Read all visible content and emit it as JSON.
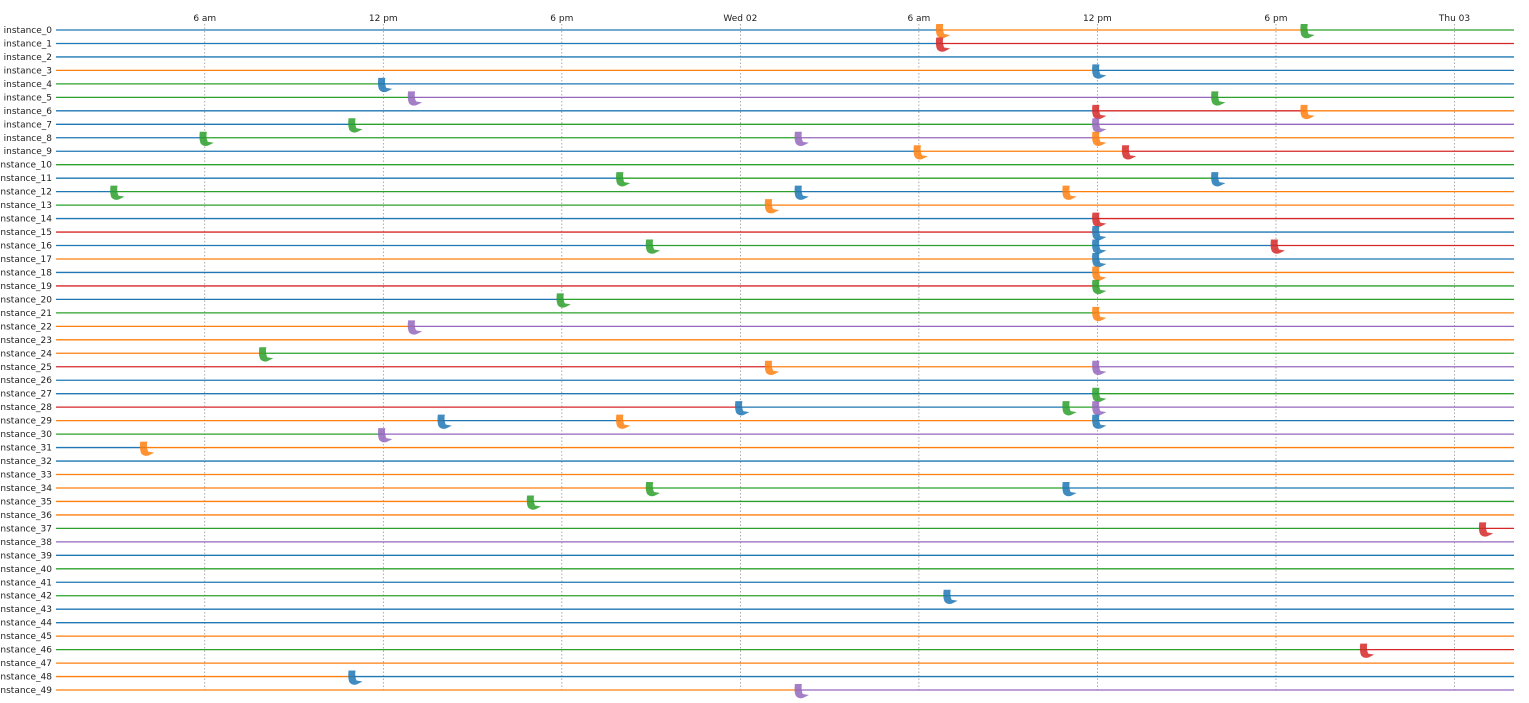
{
  "chart_data": {
    "type": "timeline",
    "title": "",
    "xlabel": "",
    "ylabel": "",
    "x_range": [
      "2021-06-01 01:00",
      "2021-06-03 02:00"
    ],
    "ticks": [
      {
        "t": "2021-06-01 06:00",
        "label": "6 am"
      },
      {
        "t": "2021-06-01 12:00",
        "label": "12 pm"
      },
      {
        "t": "2021-06-01 18:00",
        "label": "6 pm"
      },
      {
        "t": "2021-06-02 00:00",
        "label": "Wed 02"
      },
      {
        "t": "2021-06-02 06:00",
        "label": "6 am"
      },
      {
        "t": "2021-06-02 12:00",
        "label": "12 pm"
      },
      {
        "t": "2021-06-02 18:00",
        "label": "6 pm"
      },
      {
        "t": "2021-06-03 00:00",
        "label": "Thu 03"
      }
    ],
    "state_colors": {
      "blue": "#1f77b4",
      "orange": "#ff7f0e",
      "green": "#2ca02c",
      "red": "#d62728",
      "purple": "#9467bd"
    },
    "rows": [
      {
        "name": "instance_0",
        "segments": [
          [
            "2021-06-01 01:00",
            "2021-06-02 06:45",
            "blue"
          ],
          [
            "2021-06-02 06:45",
            "2021-06-02 19:00",
            "orange"
          ],
          [
            "2021-06-02 19:00",
            "2021-06-03 02:00",
            "green"
          ]
        ]
      },
      {
        "name": "instance_1",
        "segments": [
          [
            "2021-06-01 01:00",
            "2021-06-02 06:45",
            "blue"
          ],
          [
            "2021-06-02 06:45",
            "2021-06-03 02:00",
            "red"
          ]
        ]
      },
      {
        "name": "instance_2",
        "segments": [
          [
            "2021-06-01 01:00",
            "2021-06-03 02:00",
            "blue"
          ]
        ]
      },
      {
        "name": "instance_3",
        "segments": [
          [
            "2021-06-01 01:00",
            "2021-06-02 12:00",
            "orange"
          ],
          [
            "2021-06-02 12:00",
            "2021-06-03 02:00",
            "blue"
          ]
        ]
      },
      {
        "name": "instance_4",
        "segments": [
          [
            "2021-06-01 01:00",
            "2021-06-01 12:00",
            "green"
          ],
          [
            "2021-06-01 12:00",
            "2021-06-03 02:00",
            "blue"
          ]
        ]
      },
      {
        "name": "instance_5",
        "segments": [
          [
            "2021-06-01 01:00",
            "2021-06-01 13:00",
            "green"
          ],
          [
            "2021-06-01 13:00",
            "2021-06-02 16:00",
            "purple"
          ],
          [
            "2021-06-02 16:00",
            "2021-06-03 02:00",
            "green"
          ]
        ]
      },
      {
        "name": "instance_6",
        "segments": [
          [
            "2021-06-01 01:00",
            "2021-06-02 12:00",
            "blue"
          ],
          [
            "2021-06-02 12:00",
            "2021-06-02 19:00",
            "red"
          ],
          [
            "2021-06-02 19:00",
            "2021-06-03 02:00",
            "orange"
          ]
        ]
      },
      {
        "name": "instance_7",
        "segments": [
          [
            "2021-06-01 01:00",
            "2021-06-01 11:00",
            "blue"
          ],
          [
            "2021-06-01 11:00",
            "2021-06-02 12:00",
            "green"
          ],
          [
            "2021-06-02 12:00",
            "2021-06-03 02:00",
            "purple"
          ]
        ]
      },
      {
        "name": "instance_8",
        "segments": [
          [
            "2021-06-01 01:00",
            "2021-06-01 06:00",
            "blue"
          ],
          [
            "2021-06-01 06:00",
            "2021-06-02 02:00",
            "green"
          ],
          [
            "2021-06-02 02:00",
            "2021-06-02 12:00",
            "purple"
          ],
          [
            "2021-06-02 12:00",
            "2021-06-03 02:00",
            "orange"
          ]
        ]
      },
      {
        "name": "instance_9",
        "segments": [
          [
            "2021-06-01 01:00",
            "2021-06-02 06:00",
            "blue"
          ],
          [
            "2021-06-02 06:00",
            "2021-06-02 13:00",
            "orange"
          ],
          [
            "2021-06-02 13:00",
            "2021-06-03 02:00",
            "red"
          ]
        ]
      },
      {
        "name": "instance_10",
        "segments": [
          [
            "2021-06-01 01:00",
            "2021-06-03 02:00",
            "green"
          ]
        ]
      },
      {
        "name": "instance_11",
        "segments": [
          [
            "2021-06-01 01:00",
            "2021-06-01 20:00",
            "blue"
          ],
          [
            "2021-06-01 20:00",
            "2021-06-02 16:00",
            "green"
          ],
          [
            "2021-06-02 16:00",
            "2021-06-03 02:00",
            "blue"
          ]
        ]
      },
      {
        "name": "instance_12",
        "segments": [
          [
            "2021-06-01 01:00",
            "2021-06-01 03:00",
            "blue"
          ],
          [
            "2021-06-01 03:00",
            "2021-06-02 02:00",
            "green"
          ],
          [
            "2021-06-02 02:00",
            "2021-06-02 11:00",
            "blue"
          ],
          [
            "2021-06-02 11:00",
            "2021-06-03 02:00",
            "orange"
          ]
        ]
      },
      {
        "name": "instance_13",
        "segments": [
          [
            "2021-06-01 01:00",
            "2021-06-02 01:00",
            "green"
          ],
          [
            "2021-06-02 01:00",
            "2021-06-03 02:00",
            "orange"
          ]
        ]
      },
      {
        "name": "instance_14",
        "segments": [
          [
            "2021-06-01 01:00",
            "2021-06-02 12:00",
            "blue"
          ],
          [
            "2021-06-02 12:00",
            "2021-06-03 02:00",
            "red"
          ]
        ]
      },
      {
        "name": "instance_15",
        "segments": [
          [
            "2021-06-01 01:00",
            "2021-06-02 12:00",
            "red"
          ],
          [
            "2021-06-02 12:00",
            "2021-06-03 02:00",
            "blue"
          ]
        ]
      },
      {
        "name": "instance_16",
        "segments": [
          [
            "2021-06-01 01:00",
            "2021-06-01 21:00",
            "blue"
          ],
          [
            "2021-06-01 21:00",
            "2021-06-02 12:00",
            "green"
          ],
          [
            "2021-06-02 12:00",
            "2021-06-02 18:00",
            "blue"
          ],
          [
            "2021-06-02 18:00",
            "2021-06-03 02:00",
            "red"
          ]
        ]
      },
      {
        "name": "instance_17",
        "segments": [
          [
            "2021-06-01 01:00",
            "2021-06-02 12:00",
            "orange"
          ],
          [
            "2021-06-02 12:00",
            "2021-06-03 02:00",
            "blue"
          ]
        ]
      },
      {
        "name": "instance_18",
        "segments": [
          [
            "2021-06-01 01:00",
            "2021-06-02 12:00",
            "blue"
          ],
          [
            "2021-06-02 12:00",
            "2021-06-03 02:00",
            "orange"
          ]
        ]
      },
      {
        "name": "instance_19",
        "segments": [
          [
            "2021-06-01 01:00",
            "2021-06-02 12:00",
            "red"
          ],
          [
            "2021-06-02 12:00",
            "2021-06-03 02:00",
            "green"
          ]
        ]
      },
      {
        "name": "instance_20",
        "segments": [
          [
            "2021-06-01 01:00",
            "2021-06-01 18:00",
            "blue"
          ],
          [
            "2021-06-01 18:00",
            "2021-06-03 02:00",
            "green"
          ]
        ]
      },
      {
        "name": "instance_21",
        "segments": [
          [
            "2021-06-01 01:00",
            "2021-06-02 12:00",
            "green"
          ],
          [
            "2021-06-02 12:00",
            "2021-06-03 02:00",
            "orange"
          ]
        ]
      },
      {
        "name": "instance_22",
        "segments": [
          [
            "2021-06-01 01:00",
            "2021-06-01 13:00",
            "orange"
          ],
          [
            "2021-06-01 13:00",
            "2021-06-03 02:00",
            "purple"
          ]
        ]
      },
      {
        "name": "instance_23",
        "segments": [
          [
            "2021-06-01 01:00",
            "2021-06-03 02:00",
            "orange"
          ]
        ]
      },
      {
        "name": "instance_24",
        "segments": [
          [
            "2021-06-01 01:00",
            "2021-06-01 08:00",
            "orange"
          ],
          [
            "2021-06-01 08:00",
            "2021-06-03 02:00",
            "green"
          ]
        ]
      },
      {
        "name": "instance_25",
        "segments": [
          [
            "2021-06-01 01:00",
            "2021-06-02 01:00",
            "red"
          ],
          [
            "2021-06-02 01:00",
            "2021-06-02 12:00",
            "orange"
          ],
          [
            "2021-06-02 12:00",
            "2021-06-03 02:00",
            "purple"
          ]
        ]
      },
      {
        "name": "instance_26",
        "segments": [
          [
            "2021-06-01 01:00",
            "2021-06-03 02:00",
            "blue"
          ]
        ]
      },
      {
        "name": "instance_27",
        "segments": [
          [
            "2021-06-01 01:00",
            "2021-06-02 12:00",
            "blue"
          ],
          [
            "2021-06-02 12:00",
            "2021-06-03 02:00",
            "green"
          ]
        ]
      },
      {
        "name": "instance_28",
        "segments": [
          [
            "2021-06-01 01:00",
            "2021-06-02 00:00",
            "red"
          ],
          [
            "2021-06-02 00:00",
            "2021-06-02 11:00",
            "blue"
          ],
          [
            "2021-06-02 11:00",
            "2021-06-02 12:00",
            "green"
          ],
          [
            "2021-06-02 12:00",
            "2021-06-03 02:00",
            "purple"
          ]
        ]
      },
      {
        "name": "instance_29",
        "segments": [
          [
            "2021-06-01 01:00",
            "2021-06-01 14:00",
            "orange"
          ],
          [
            "2021-06-01 14:00",
            "2021-06-01 20:00",
            "blue"
          ],
          [
            "2021-06-01 20:00",
            "2021-06-02 12:00",
            "orange"
          ],
          [
            "2021-06-02 12:00",
            "2021-06-03 02:00",
            "blue"
          ]
        ]
      },
      {
        "name": "instance_30",
        "segments": [
          [
            "2021-06-01 01:00",
            "2021-06-01 12:00",
            "green"
          ],
          [
            "2021-06-01 12:00",
            "2021-06-03 02:00",
            "purple"
          ]
        ]
      },
      {
        "name": "instance_31",
        "segments": [
          [
            "2021-06-01 01:00",
            "2021-06-01 04:00",
            "blue"
          ],
          [
            "2021-06-01 04:00",
            "2021-06-03 02:00",
            "orange"
          ]
        ]
      },
      {
        "name": "instance_32",
        "segments": [
          [
            "2021-06-01 01:00",
            "2021-06-03 02:00",
            "blue"
          ]
        ]
      },
      {
        "name": "instance_33",
        "segments": [
          [
            "2021-06-01 01:00",
            "2021-06-03 02:00",
            "orange"
          ]
        ]
      },
      {
        "name": "instance_34",
        "segments": [
          [
            "2021-06-01 01:00",
            "2021-06-01 21:00",
            "orange"
          ],
          [
            "2021-06-01 21:00",
            "2021-06-02 11:00",
            "green"
          ],
          [
            "2021-06-02 11:00",
            "2021-06-03 02:00",
            "blue"
          ]
        ]
      },
      {
        "name": "instance_35",
        "segments": [
          [
            "2021-06-01 01:00",
            "2021-06-01 17:00",
            "orange"
          ],
          [
            "2021-06-01 17:00",
            "2021-06-03 02:00",
            "green"
          ]
        ]
      },
      {
        "name": "instance_36",
        "segments": [
          [
            "2021-06-01 01:00",
            "2021-06-03 02:00",
            "orange"
          ]
        ]
      },
      {
        "name": "instance_37",
        "segments": [
          [
            "2021-06-01 01:00",
            "2021-06-03 01:00",
            "green"
          ],
          [
            "2021-06-03 01:00",
            "2021-06-03 02:00",
            "red"
          ]
        ]
      },
      {
        "name": "instance_38",
        "segments": [
          [
            "2021-06-01 01:00",
            "2021-06-03 02:00",
            "purple"
          ]
        ]
      },
      {
        "name": "instance_39",
        "segments": [
          [
            "2021-06-01 01:00",
            "2021-06-03 02:00",
            "blue"
          ]
        ]
      },
      {
        "name": "instance_40",
        "segments": [
          [
            "2021-06-01 01:00",
            "2021-06-03 02:00",
            "green"
          ]
        ]
      },
      {
        "name": "instance_41",
        "segments": [
          [
            "2021-06-01 01:00",
            "2021-06-03 02:00",
            "blue"
          ]
        ]
      },
      {
        "name": "instance_42",
        "segments": [
          [
            "2021-06-01 01:00",
            "2021-06-02 07:00",
            "green"
          ],
          [
            "2021-06-02 07:00",
            "2021-06-03 02:00",
            "blue"
          ]
        ]
      },
      {
        "name": "instance_43",
        "segments": [
          [
            "2021-06-01 01:00",
            "2021-06-03 02:00",
            "blue"
          ]
        ]
      },
      {
        "name": "instance_44",
        "segments": [
          [
            "2021-06-01 01:00",
            "2021-06-03 02:00",
            "blue"
          ]
        ]
      },
      {
        "name": "instance_45",
        "segments": [
          [
            "2021-06-01 01:00",
            "2021-06-03 02:00",
            "orange"
          ]
        ]
      },
      {
        "name": "instance_46",
        "segments": [
          [
            "2021-06-01 01:00",
            "2021-06-02 21:00",
            "green"
          ],
          [
            "2021-06-02 21:00",
            "2021-06-03 02:00",
            "red"
          ]
        ]
      },
      {
        "name": "instance_47",
        "segments": [
          [
            "2021-06-01 01:00",
            "2021-06-03 02:00",
            "orange"
          ]
        ]
      },
      {
        "name": "instance_48",
        "segments": [
          [
            "2021-06-01 01:00",
            "2021-06-01 11:00",
            "orange"
          ],
          [
            "2021-06-01 11:00",
            "2021-06-03 02:00",
            "blue"
          ]
        ]
      },
      {
        "name": "instance_49",
        "segments": [
          [
            "2021-06-01 01:00",
            "2021-06-02 02:00",
            "orange"
          ],
          [
            "2021-06-02 02:00",
            "2021-06-03 02:00",
            "purple"
          ]
        ]
      }
    ]
  }
}
